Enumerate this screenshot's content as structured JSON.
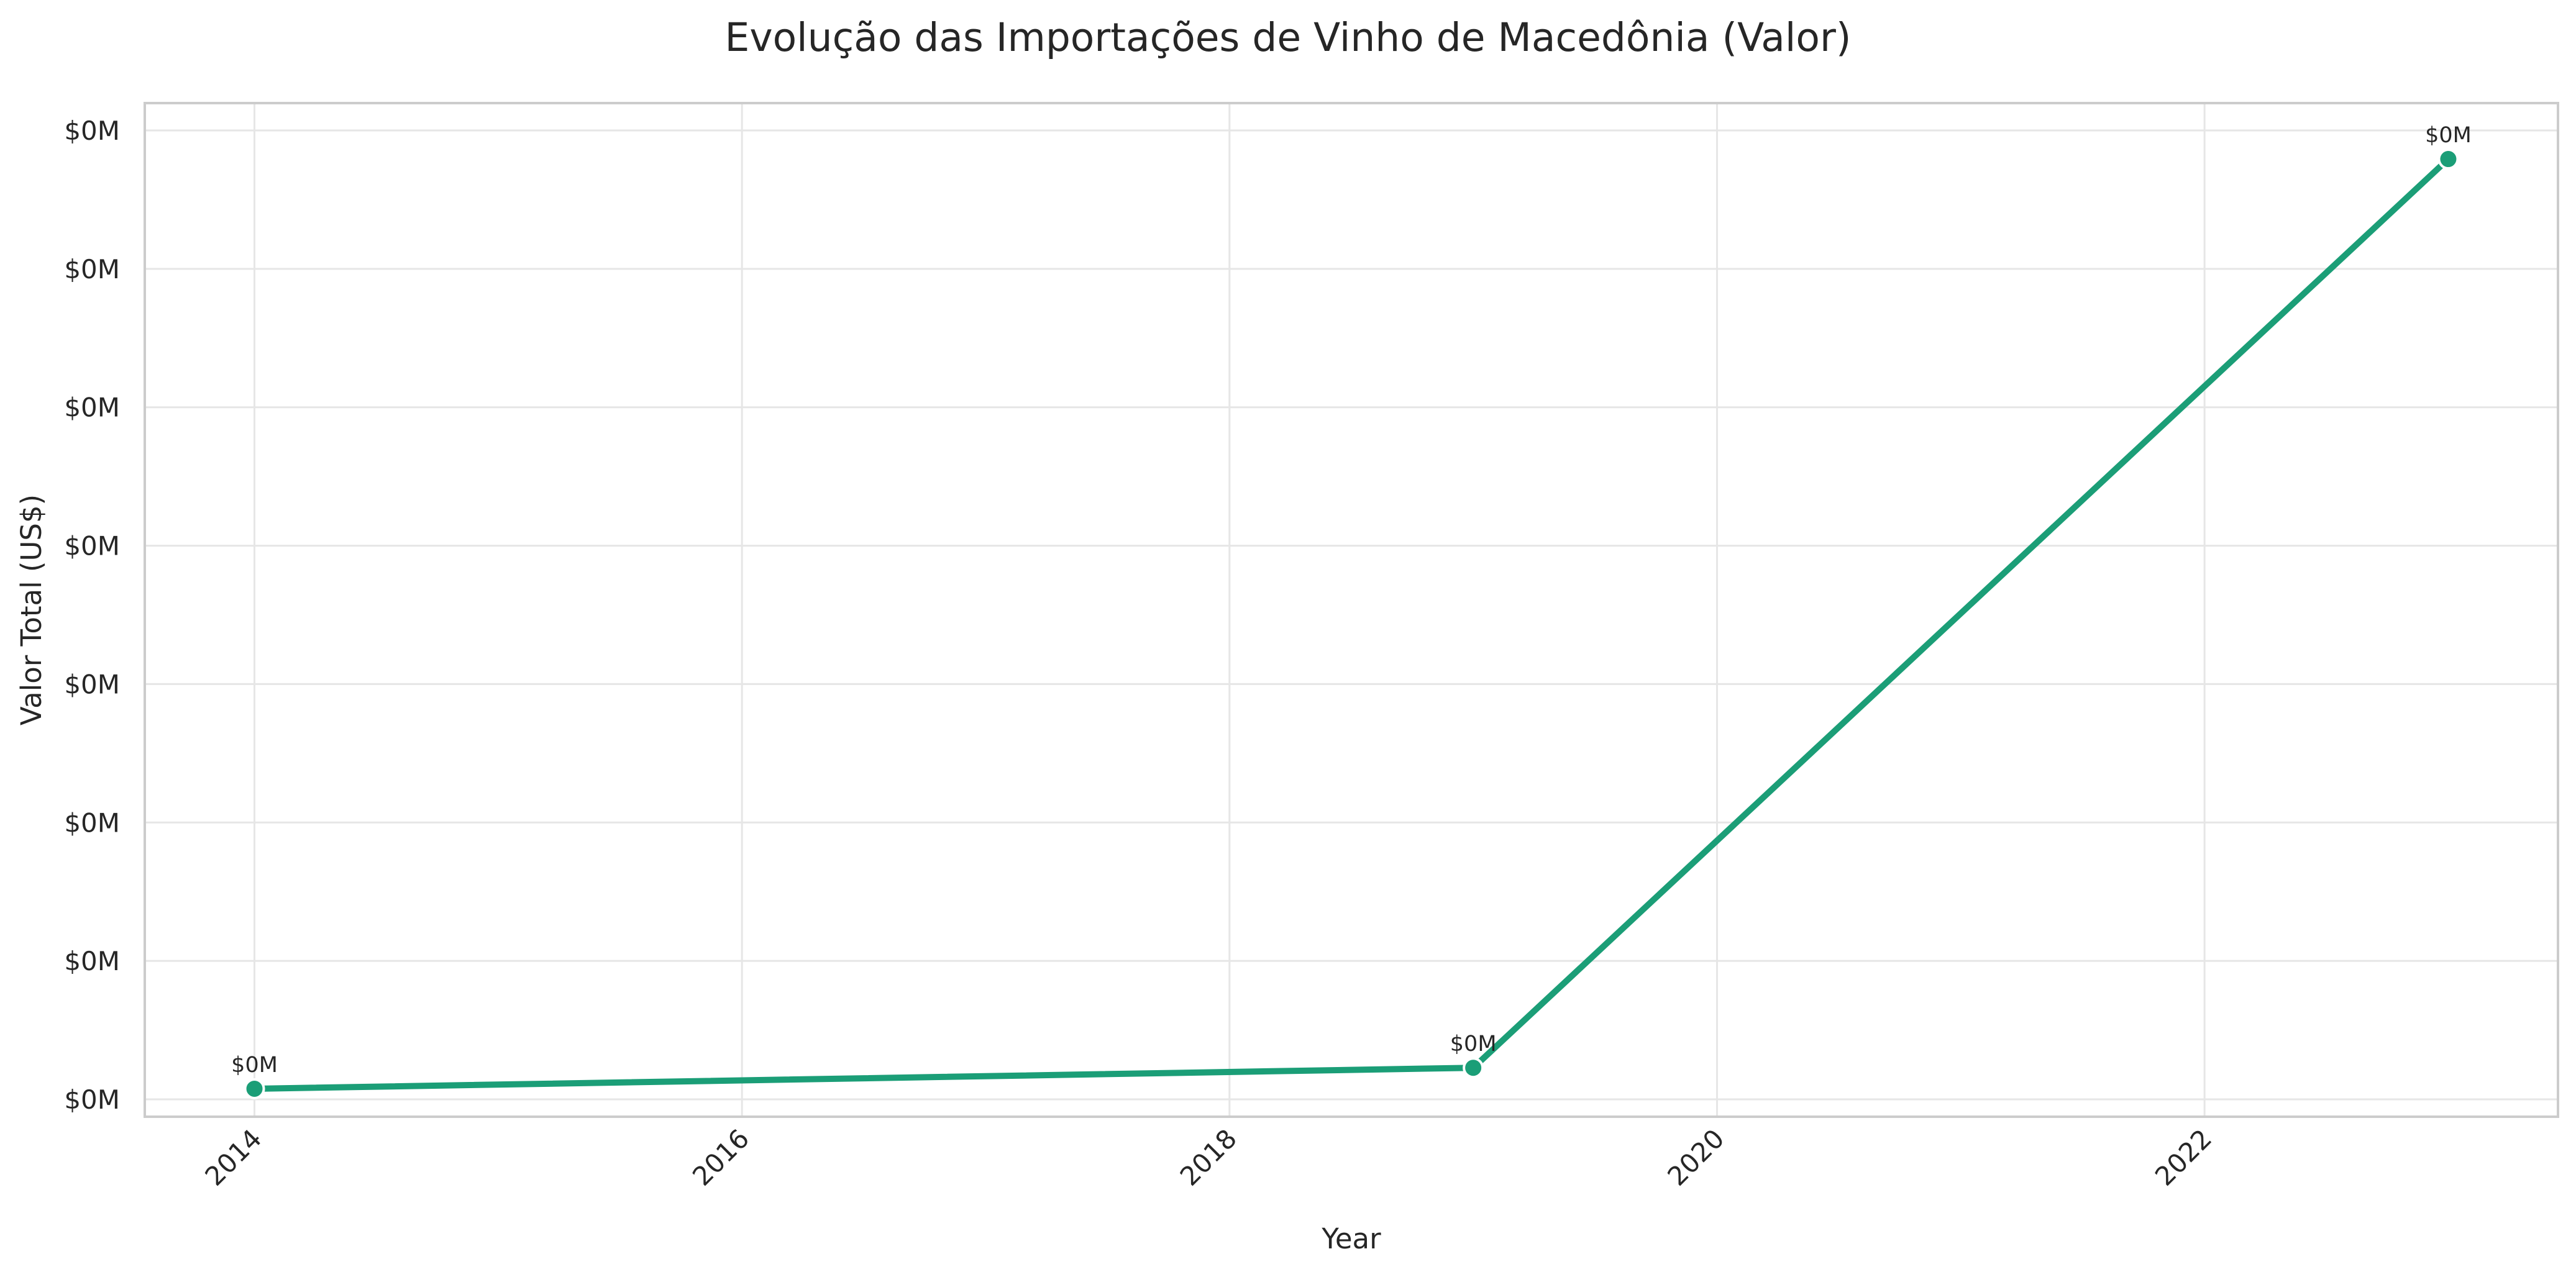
{
  "chart_data": {
    "type": "line",
    "title": "Evolução das Importações de Vinho de Macedônia (Valor)",
    "xlabel": "Year",
    "ylabel": "Valor Total (US$)",
    "x_ticks": [
      "2014",
      "2016",
      "2018",
      "2020",
      "2022"
    ],
    "y_ticks": [
      "$0M",
      "$0M",
      "$0M",
      "$0M",
      "$0M",
      "$0M",
      "$0M",
      "$0M"
    ],
    "xlim": [
      2013.55,
      2023.45
    ],
    "ylim": [
      0.0,
      7.25
    ],
    "grid": true,
    "series": [
      {
        "color": "#1b9e77",
        "points": [
          {
            "x": 2014,
            "y": 0.2,
            "label": "$0M"
          },
          {
            "x": 2019,
            "y": 0.35,
            "label": "$0M"
          },
          {
            "x": 2023,
            "y": 6.85,
            "label": "$0M"
          }
        ]
      }
    ]
  }
}
